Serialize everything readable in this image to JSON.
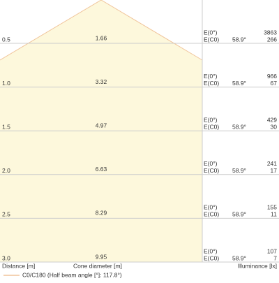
{
  "rows": [
    {
      "distance": "0.5",
      "diameter": "1.66",
      "e0_label": "E(0°)",
      "ec0_label": "E(C0)",
      "angle": "58.9°",
      "e0": "3863",
      "ec0": "266"
    },
    {
      "distance": "1.0",
      "diameter": "3.32",
      "e0_label": "E(0°)",
      "ec0_label": "E(C0)",
      "angle": "58.9°",
      "e0": "966",
      "ec0": "67"
    },
    {
      "distance": "1.5",
      "diameter": "4.97",
      "e0_label": "E(0°)",
      "ec0_label": "E(C0)",
      "angle": "58.9°",
      "e0": "429",
      "ec0": "30"
    },
    {
      "distance": "2.0",
      "diameter": "6.63",
      "e0_label": "E(0°)",
      "ec0_label": "E(C0)",
      "angle": "58.9°",
      "e0": "241",
      "ec0": "17"
    },
    {
      "distance": "2.5",
      "diameter": "8.29",
      "e0_label": "E(0°)",
      "ec0_label": "E(C0)",
      "angle": "58.9°",
      "e0": "155",
      "ec0": "11"
    },
    {
      "distance": "3.0",
      "diameter": "9.95",
      "e0_label": "E(0°)",
      "ec0_label": "E(C0)",
      "angle": "58.9°",
      "e0": "107",
      "ec0": "7"
    }
  ],
  "footer": {
    "distance": "Distance [m]",
    "diameter": "Cone diameter [m]",
    "illuminance": "Illuminance [lx]"
  },
  "legend": "C0/C180 (Half beam angle [°]: 117.8°)"
}
